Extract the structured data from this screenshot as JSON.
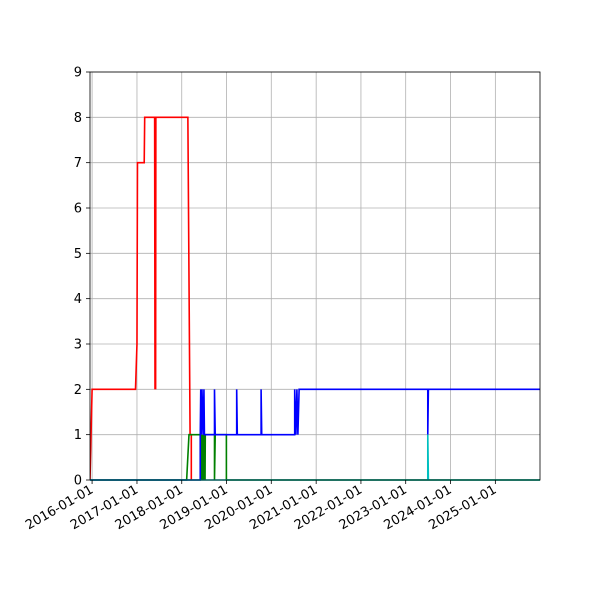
{
  "chart_data": {
    "type": "line",
    "title": "",
    "xlabel": "",
    "ylabel": "",
    "xlim": [
      "2015-12-15",
      "2025-12-31"
    ],
    "ylim": [
      0,
      9
    ],
    "grid": true,
    "x_ticks": [
      "2016-01-01",
      "2017-01-01",
      "2018-01-01",
      "2019-01-01",
      "2020-01-01",
      "2021-01-01",
      "2022-01-01",
      "2023-01-01",
      "2024-01-01",
      "2025-01-01"
    ],
    "y_ticks": [
      "0",
      "1",
      "2",
      "3",
      "4",
      "5",
      "6",
      "7",
      "8",
      "9"
    ],
    "series": [
      {
        "color": "#ff0000",
        "points": [
          [
            "2015-12-15",
            0
          ],
          [
            "2016-01-01",
            2
          ],
          [
            "2016-12-20",
            2
          ],
          [
            "2017-01-01",
            3
          ],
          [
            "2017-01-05",
            7
          ],
          [
            "2017-03-01",
            7
          ],
          [
            "2017-03-05",
            8
          ],
          [
            "2017-05-25",
            8
          ],
          [
            "2017-05-28",
            2
          ],
          [
            "2017-05-31",
            8
          ],
          [
            "2017-06-02",
            2
          ],
          [
            "2017-06-04",
            8
          ],
          [
            "2018-02-20",
            8
          ],
          [
            "2018-03-10",
            1
          ],
          [
            "2018-03-20",
            1
          ],
          [
            "2018-03-20",
            0
          ]
        ]
      },
      {
        "color": "#008000",
        "points": [
          [
            "2015-12-15",
            0
          ],
          [
            "2018-02-10",
            0
          ],
          [
            "2018-03-01",
            1
          ],
          [
            "2018-06-01",
            1
          ],
          [
            "2018-06-01",
            0
          ],
          [
            "2018-06-05",
            1
          ],
          [
            "2018-06-10",
            0
          ],
          [
            "2018-06-15",
            1
          ],
          [
            "2018-06-20",
            0
          ],
          [
            "2018-06-25",
            1
          ],
          [
            "2018-07-01",
            0
          ],
          [
            "2018-07-05",
            1
          ],
          [
            "2018-07-10",
            0
          ],
          [
            "2018-07-12",
            1
          ],
          [
            "2018-09-25",
            1
          ],
          [
            "2018-09-25",
            0
          ],
          [
            "2018-10-01",
            1
          ],
          [
            "2018-12-31",
            1
          ],
          [
            "2018-12-31",
            0
          ],
          [
            "2025-12-31",
            0
          ]
        ]
      },
      {
        "color": "#0000ff",
        "points": [
          [
            "2015-12-15",
            0
          ],
          [
            "2018-06-01",
            0
          ],
          [
            "2018-06-01",
            1
          ],
          [
            "2018-06-05",
            2
          ],
          [
            "2018-06-10",
            1
          ],
          [
            "2018-06-15",
            2
          ],
          [
            "2018-06-25",
            1
          ],
          [
            "2018-07-01",
            2
          ],
          [
            "2018-07-05",
            1
          ],
          [
            "2018-09-25",
            1
          ],
          [
            "2018-09-25",
            2
          ],
          [
            "2018-10-01",
            1
          ],
          [
            "2019-03-25",
            1
          ],
          [
            "2019-03-25",
            2
          ],
          [
            "2019-03-30",
            1
          ],
          [
            "2019-10-10",
            1
          ],
          [
            "2019-10-10",
            2
          ],
          [
            "2019-10-15",
            1
          ],
          [
            "2020-07-10",
            1
          ],
          [
            "2020-07-10",
            2
          ],
          [
            "2020-07-20",
            1
          ],
          [
            "2020-07-28",
            2
          ],
          [
            "2020-08-05",
            1
          ],
          [
            "2020-08-15",
            2
          ],
          [
            "2023-06-30",
            2
          ],
          [
            "2023-06-30",
            1
          ],
          [
            "2023-07-05",
            2
          ],
          [
            "2025-12-31",
            2
          ]
        ]
      },
      {
        "color": "#00bfbf",
        "points": [
          [
            "2015-12-15",
            0
          ],
          [
            "2023-06-30",
            0
          ],
          [
            "2023-06-30",
            1
          ],
          [
            "2023-07-05",
            0
          ],
          [
            "2025-12-31",
            0
          ]
        ]
      }
    ]
  }
}
